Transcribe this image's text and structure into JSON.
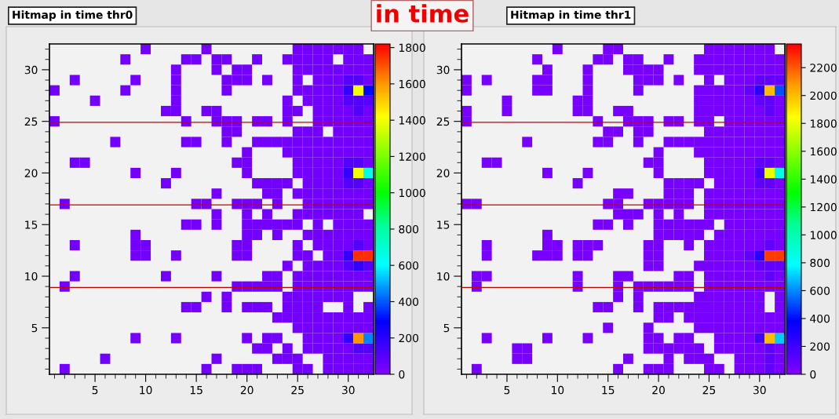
{
  "chart_data": [
    {
      "type": "heatmap",
      "title": "Hitmap in time thr0",
      "annotations": [
        "in time"
      ],
      "x": [
        1,
        2,
        3,
        4,
        5,
        6,
        7,
        8,
        9,
        10,
        11,
        12,
        13,
        14,
        15,
        16,
        17,
        18,
        19,
        20,
        21,
        22,
        23,
        24,
        25,
        26,
        27,
        28,
        29,
        30,
        31,
        32
      ],
      "y": [
        32,
        31,
        30,
        29,
        28,
        27,
        26,
        25,
        24,
        23,
        22,
        21,
        20,
        19,
        18,
        17,
        16,
        15,
        14,
        13,
        12,
        11,
        10,
        9,
        8,
        7,
        6,
        5,
        4,
        3,
        2,
        1
      ],
      "xlim": [
        0.5,
        32.5
      ],
      "xticks": [
        5,
        10,
        15,
        20,
        25,
        30
      ],
      "ylim": [
        0.5,
        32.5
      ],
      "yticks": [
        5,
        10,
        15,
        20,
        25,
        30
      ],
      "clim": [
        0,
        1820
      ],
      "cticks": [
        0,
        200,
        400,
        600,
        800,
        1000,
        1200,
        1400,
        1600,
        1800
      ],
      "ref_lines": [
        {
          "axis": "y",
          "value": 24.9,
          "color": "#c00000"
        },
        {
          "axis": "y",
          "value": 16.9,
          "color": "#c00000"
        },
        {
          "axis": "y",
          "value": 8.9,
          "color": "#c00000"
        }
      ],
      "cells": [
        [
          null,
          null,
          null,
          null,
          null,
          null,
          null,
          null,
          null,
          30,
          null,
          null,
          null,
          null,
          null,
          30,
          null,
          null,
          null,
          null,
          null,
          null,
          null,
          null,
          30,
          30,
          30,
          30,
          30,
          30,
          30,
          null
        ],
        [
          null,
          null,
          null,
          null,
          null,
          null,
          null,
          30,
          null,
          null,
          null,
          null,
          null,
          30,
          30,
          null,
          30,
          30,
          null,
          null,
          30,
          null,
          null,
          30,
          30,
          30,
          30,
          30,
          null,
          30,
          30,
          30
        ],
        [
          null,
          null,
          null,
          null,
          null,
          null,
          null,
          null,
          null,
          null,
          null,
          null,
          30,
          null,
          null,
          null,
          30,
          null,
          30,
          30,
          null,
          null,
          null,
          null,
          30,
          30,
          30,
          30,
          30,
          30,
          30,
          30
        ],
        [
          null,
          null,
          30,
          null,
          null,
          null,
          null,
          null,
          30,
          null,
          null,
          null,
          30,
          null,
          null,
          null,
          null,
          30,
          30,
          30,
          null,
          30,
          null,
          null,
          30,
          null,
          30,
          30,
          30,
          100,
          100,
          30
        ],
        [
          30,
          null,
          null,
          null,
          null,
          null,
          null,
          30,
          null,
          null,
          null,
          null,
          30,
          null,
          null,
          null,
          null,
          30,
          null,
          null,
          null,
          null,
          null,
          null,
          30,
          30,
          30,
          30,
          30,
          180,
          1400,
          300
        ],
        [
          null,
          null,
          null,
          null,
          30,
          null,
          null,
          null,
          null,
          null,
          null,
          null,
          30,
          null,
          null,
          null,
          null,
          null,
          null,
          null,
          null,
          null,
          null,
          30,
          null,
          30,
          30,
          30,
          30,
          100,
          100,
          100
        ],
        [
          null,
          null,
          null,
          null,
          null,
          null,
          null,
          null,
          null,
          null,
          null,
          30,
          30,
          null,
          null,
          30,
          30,
          null,
          null,
          null,
          null,
          null,
          null,
          30,
          30,
          null,
          30,
          30,
          30,
          30,
          100,
          30
        ],
        [
          30,
          null,
          null,
          null,
          null,
          null,
          null,
          null,
          null,
          null,
          null,
          null,
          null,
          30,
          null,
          null,
          30,
          30,
          30,
          null,
          30,
          30,
          null,
          30,
          null,
          null,
          30,
          30,
          30,
          30,
          30,
          30
        ],
        [
          null,
          null,
          null,
          null,
          null,
          null,
          null,
          null,
          null,
          null,
          null,
          null,
          null,
          null,
          null,
          null,
          null,
          30,
          30,
          null,
          null,
          null,
          null,
          null,
          30,
          30,
          30,
          null,
          30,
          30,
          30,
          30
        ],
        [
          null,
          null,
          null,
          null,
          null,
          null,
          30,
          null,
          null,
          null,
          null,
          null,
          null,
          30,
          30,
          null,
          null,
          30,
          null,
          null,
          30,
          30,
          30,
          30,
          30,
          30,
          30,
          30,
          30,
          30,
          30,
          30
        ],
        [
          null,
          null,
          null,
          null,
          null,
          null,
          null,
          null,
          null,
          null,
          null,
          null,
          null,
          null,
          null,
          null,
          null,
          null,
          null,
          30,
          null,
          null,
          null,
          30,
          30,
          30,
          30,
          30,
          30,
          30,
          30,
          30
        ],
        [
          null,
          null,
          30,
          30,
          null,
          null,
          null,
          null,
          null,
          null,
          null,
          null,
          null,
          null,
          null,
          null,
          null,
          null,
          30,
          30,
          null,
          null,
          null,
          null,
          30,
          30,
          30,
          30,
          30,
          100,
          100,
          30
        ],
        [
          null,
          null,
          null,
          null,
          null,
          null,
          null,
          null,
          30,
          null,
          null,
          null,
          30,
          null,
          null,
          null,
          null,
          null,
          null,
          30,
          null,
          null,
          null,
          null,
          30,
          30,
          30,
          30,
          30,
          180,
          1400,
          650
        ],
        [
          null,
          null,
          null,
          null,
          null,
          null,
          null,
          null,
          null,
          null,
          null,
          30,
          null,
          null,
          null,
          null,
          null,
          null,
          null,
          null,
          30,
          30,
          30,
          30,
          null,
          30,
          30,
          30,
          30,
          100,
          100,
          30
        ],
        [
          null,
          null,
          null,
          null,
          null,
          null,
          null,
          null,
          null,
          null,
          null,
          null,
          null,
          null,
          null,
          null,
          30,
          null,
          null,
          null,
          null,
          30,
          30,
          null,
          30,
          30,
          30,
          30,
          30,
          30,
          30,
          30
        ],
        [
          null,
          30,
          null,
          null,
          null,
          null,
          null,
          null,
          null,
          null,
          null,
          null,
          null,
          null,
          30,
          30,
          null,
          null,
          30,
          30,
          30,
          null,
          30,
          null,
          null,
          30,
          30,
          30,
          30,
          30,
          30,
          30
        ],
        [
          null,
          null,
          null,
          null,
          null,
          null,
          null,
          null,
          null,
          null,
          null,
          null,
          null,
          null,
          null,
          null,
          30,
          null,
          null,
          30,
          null,
          30,
          null,
          null,
          30,
          30,
          30,
          30,
          30,
          30,
          30,
          null
        ],
        [
          null,
          null,
          null,
          null,
          null,
          null,
          null,
          null,
          null,
          null,
          null,
          null,
          null,
          30,
          30,
          null,
          30,
          null,
          null,
          30,
          30,
          30,
          30,
          30,
          30,
          null,
          30,
          null,
          30,
          30,
          30,
          30
        ],
        [
          null,
          null,
          null,
          null,
          null,
          null,
          null,
          null,
          30,
          null,
          null,
          null,
          null,
          null,
          null,
          null,
          null,
          null,
          null,
          30,
          30,
          null,
          30,
          null,
          null,
          30,
          30,
          30,
          30,
          30,
          30,
          30
        ],
        [
          null,
          null,
          30,
          null,
          null,
          null,
          null,
          null,
          30,
          30,
          null,
          null,
          null,
          null,
          null,
          null,
          null,
          null,
          30,
          30,
          null,
          null,
          null,
          null,
          30,
          null,
          30,
          30,
          30,
          30,
          100,
          30
        ],
        [
          null,
          null,
          null,
          null,
          null,
          null,
          null,
          null,
          30,
          30,
          null,
          null,
          30,
          null,
          null,
          null,
          null,
          null,
          30,
          30,
          null,
          null,
          null,
          null,
          30,
          30,
          null,
          30,
          30,
          180,
          1750,
          1750
        ],
        [
          null,
          null,
          null,
          null,
          null,
          null,
          null,
          null,
          null,
          null,
          null,
          null,
          null,
          null,
          null,
          null,
          null,
          null,
          null,
          null,
          null,
          null,
          null,
          30,
          null,
          30,
          30,
          30,
          30,
          100,
          180,
          100
        ],
        [
          null,
          null,
          30,
          null,
          null,
          null,
          null,
          null,
          null,
          null,
          null,
          30,
          null,
          null,
          null,
          null,
          30,
          null,
          null,
          null,
          null,
          30,
          30,
          null,
          30,
          30,
          30,
          30,
          30,
          30,
          30,
          30
        ],
        [
          null,
          30,
          null,
          null,
          null,
          null,
          null,
          null,
          null,
          null,
          null,
          null,
          null,
          null,
          null,
          null,
          null,
          null,
          30,
          30,
          30,
          30,
          30,
          null,
          30,
          30,
          30,
          30,
          30,
          30,
          30,
          30
        ],
        [
          null,
          null,
          null,
          null,
          null,
          null,
          null,
          null,
          null,
          null,
          null,
          null,
          null,
          null,
          null,
          30,
          null,
          30,
          null,
          null,
          null,
          null,
          null,
          30,
          30,
          30,
          30,
          30,
          30,
          30,
          null,
          null
        ],
        [
          null,
          null,
          null,
          null,
          null,
          null,
          null,
          null,
          null,
          null,
          null,
          null,
          null,
          30,
          30,
          null,
          null,
          30,
          null,
          30,
          30,
          30,
          null,
          30,
          30,
          30,
          30,
          null,
          null,
          30,
          null,
          30
        ],
        [
          null,
          null,
          null,
          null,
          null,
          null,
          null,
          null,
          null,
          null,
          null,
          null,
          null,
          null,
          null,
          null,
          null,
          null,
          null,
          null,
          null,
          null,
          30,
          30,
          30,
          30,
          30,
          30,
          30,
          30,
          30,
          30
        ],
        [
          null,
          null,
          null,
          null,
          null,
          null,
          null,
          null,
          null,
          null,
          null,
          null,
          null,
          null,
          null,
          null,
          null,
          null,
          null,
          null,
          null,
          null,
          null,
          null,
          30,
          30,
          30,
          30,
          30,
          30,
          30,
          30
        ],
        [
          null,
          null,
          null,
          null,
          null,
          null,
          null,
          null,
          30,
          null,
          null,
          null,
          30,
          null,
          null,
          null,
          null,
          null,
          null,
          30,
          null,
          30,
          30,
          null,
          null,
          30,
          30,
          30,
          30,
          180,
          1600,
          450
        ],
        [
          null,
          null,
          null,
          null,
          null,
          null,
          null,
          null,
          null,
          null,
          null,
          null,
          null,
          null,
          null,
          null,
          null,
          null,
          null,
          null,
          30,
          30,
          null,
          30,
          null,
          30,
          30,
          30,
          30,
          30,
          100,
          100
        ],
        [
          null,
          null,
          null,
          null,
          null,
          30,
          null,
          null,
          null,
          null,
          null,
          null,
          null,
          null,
          null,
          null,
          30,
          null,
          null,
          null,
          null,
          null,
          30,
          30,
          30,
          null,
          null,
          30,
          30,
          30,
          30,
          30
        ],
        [
          null,
          30,
          null,
          null,
          null,
          null,
          null,
          null,
          null,
          null,
          null,
          null,
          null,
          null,
          null,
          30,
          null,
          null,
          30,
          30,
          30,
          null,
          null,
          null,
          30,
          30,
          null,
          30,
          30,
          30,
          30,
          30
        ]
      ]
    },
    {
      "type": "heatmap",
      "title": "Hitmap in time thr1",
      "x": [
        1,
        2,
        3,
        4,
        5,
        6,
        7,
        8,
        9,
        10,
        11,
        12,
        13,
        14,
        15,
        16,
        17,
        18,
        19,
        20,
        21,
        22,
        23,
        24,
        25,
        26,
        27,
        28,
        29,
        30,
        31,
        32
      ],
      "y": [
        32,
        31,
        30,
        29,
        28,
        27,
        26,
        25,
        24,
        23,
        22,
        21,
        20,
        19,
        18,
        17,
        16,
        15,
        14,
        13,
        12,
        11,
        10,
        9,
        8,
        7,
        6,
        5,
        4,
        3,
        2,
        1
      ],
      "xlim": [
        0.5,
        32.5
      ],
      "xticks": [
        5,
        10,
        15,
        20,
        25,
        30
      ],
      "ylim": [
        0.5,
        32.5
      ],
      "yticks": [
        5,
        10,
        15,
        20,
        25,
        30
      ],
      "clim": [
        0,
        2370
      ],
      "cticks": [
        0,
        200,
        400,
        600,
        800,
        1000,
        1200,
        1400,
        1600,
        1800,
        2000,
        2200
      ],
      "ref_lines": [
        {
          "axis": "y",
          "value": 24.9,
          "color": "#c00000"
        },
        {
          "axis": "y",
          "value": 16.9,
          "color": "#c00000"
        },
        {
          "axis": "y",
          "value": 8.9,
          "color": "#c00000"
        }
      ],
      "cells": [
        [
          null,
          null,
          null,
          null,
          null,
          null,
          null,
          null,
          null,
          30,
          null,
          null,
          null,
          null,
          30,
          30,
          null,
          null,
          null,
          null,
          null,
          null,
          null,
          null,
          30,
          30,
          30,
          30,
          30,
          30,
          30,
          null
        ],
        [
          null,
          null,
          null,
          null,
          null,
          null,
          null,
          30,
          null,
          null,
          null,
          null,
          null,
          30,
          30,
          null,
          30,
          30,
          null,
          null,
          30,
          null,
          null,
          30,
          30,
          30,
          30,
          30,
          30,
          30,
          30,
          30
        ],
        [
          null,
          null,
          null,
          null,
          null,
          null,
          null,
          null,
          30,
          null,
          null,
          null,
          30,
          null,
          null,
          null,
          30,
          30,
          30,
          30,
          null,
          null,
          null,
          30,
          30,
          30,
          30,
          30,
          30,
          30,
          30,
          30
        ],
        [
          30,
          null,
          30,
          null,
          null,
          null,
          null,
          30,
          30,
          null,
          null,
          null,
          30,
          null,
          null,
          null,
          null,
          30,
          30,
          30,
          null,
          30,
          null,
          null,
          30,
          null,
          30,
          30,
          30,
          100,
          100,
          100
        ],
        [
          30,
          null,
          null,
          null,
          null,
          null,
          null,
          30,
          30,
          null,
          null,
          null,
          30,
          null,
          null,
          null,
          null,
          30,
          null,
          null,
          null,
          null,
          null,
          30,
          30,
          30,
          30,
          30,
          100,
          250,
          2000,
          500
        ],
        [
          null,
          null,
          null,
          null,
          30,
          null,
          null,
          null,
          null,
          null,
          null,
          30,
          30,
          null,
          null,
          null,
          null,
          null,
          null,
          null,
          null,
          null,
          null,
          30,
          30,
          30,
          30,
          30,
          30,
          100,
          100,
          30
        ],
        [
          30,
          null,
          null,
          null,
          30,
          null,
          null,
          null,
          null,
          null,
          null,
          30,
          30,
          null,
          null,
          30,
          30,
          null,
          null,
          null,
          null,
          null,
          null,
          30,
          30,
          30,
          30,
          30,
          30,
          30,
          100,
          30
        ],
        [
          30,
          null,
          null,
          null,
          null,
          null,
          null,
          null,
          null,
          null,
          null,
          null,
          null,
          30,
          null,
          null,
          30,
          30,
          30,
          null,
          30,
          30,
          null,
          30,
          30,
          null,
          30,
          30,
          30,
          30,
          30,
          30
        ],
        [
          null,
          null,
          null,
          null,
          null,
          null,
          null,
          null,
          null,
          null,
          null,
          null,
          null,
          null,
          30,
          30,
          null,
          30,
          30,
          null,
          null,
          null,
          null,
          null,
          30,
          30,
          30,
          30,
          30,
          30,
          30,
          30
        ],
        [
          null,
          null,
          null,
          null,
          null,
          null,
          30,
          null,
          null,
          null,
          null,
          null,
          null,
          30,
          30,
          null,
          null,
          30,
          null,
          null,
          30,
          30,
          30,
          30,
          30,
          30,
          30,
          30,
          30,
          30,
          30,
          30
        ],
        [
          null,
          null,
          null,
          null,
          null,
          null,
          null,
          null,
          null,
          null,
          null,
          null,
          null,
          null,
          null,
          null,
          null,
          null,
          null,
          30,
          null,
          null,
          null,
          30,
          30,
          30,
          30,
          30,
          30,
          30,
          30,
          30
        ],
        [
          null,
          null,
          30,
          30,
          null,
          null,
          null,
          null,
          null,
          null,
          null,
          null,
          null,
          null,
          null,
          null,
          null,
          null,
          30,
          30,
          null,
          null,
          null,
          null,
          30,
          30,
          30,
          30,
          30,
          100,
          100,
          30
        ],
        [
          null,
          null,
          null,
          null,
          null,
          null,
          null,
          null,
          30,
          null,
          null,
          null,
          30,
          null,
          null,
          null,
          null,
          null,
          null,
          30,
          null,
          null,
          null,
          null,
          30,
          30,
          30,
          30,
          30,
          180,
          1800,
          850
        ],
        [
          null,
          null,
          null,
          null,
          null,
          null,
          null,
          null,
          null,
          null,
          null,
          30,
          null,
          null,
          null,
          null,
          null,
          null,
          null,
          null,
          30,
          30,
          30,
          30,
          null,
          30,
          30,
          30,
          30,
          100,
          100,
          30
        ],
        [
          null,
          null,
          null,
          null,
          null,
          null,
          null,
          null,
          null,
          null,
          null,
          null,
          null,
          null,
          null,
          30,
          30,
          null,
          null,
          null,
          30,
          30,
          30,
          null,
          30,
          30,
          30,
          30,
          30,
          30,
          30,
          30
        ],
        [
          30,
          30,
          null,
          null,
          null,
          null,
          null,
          null,
          null,
          null,
          null,
          null,
          null,
          null,
          30,
          30,
          null,
          null,
          30,
          30,
          30,
          30,
          30,
          null,
          30,
          30,
          30,
          30,
          30,
          30,
          30,
          30
        ],
        [
          null,
          null,
          null,
          null,
          null,
          null,
          null,
          null,
          null,
          null,
          null,
          null,
          null,
          null,
          null,
          30,
          30,
          30,
          null,
          30,
          null,
          30,
          null,
          null,
          30,
          30,
          30,
          30,
          30,
          30,
          30,
          30
        ],
        [
          null,
          null,
          null,
          null,
          null,
          null,
          null,
          null,
          null,
          null,
          null,
          null,
          null,
          30,
          30,
          null,
          30,
          null,
          null,
          30,
          30,
          30,
          30,
          30,
          30,
          null,
          30,
          30,
          30,
          30,
          30,
          30
        ],
        [
          null,
          null,
          null,
          null,
          null,
          null,
          null,
          null,
          30,
          null,
          null,
          null,
          null,
          null,
          null,
          null,
          null,
          null,
          null,
          30,
          30,
          30,
          30,
          30,
          null,
          30,
          30,
          30,
          30,
          30,
          30,
          30
        ],
        [
          null,
          null,
          30,
          null,
          null,
          null,
          null,
          null,
          30,
          30,
          null,
          30,
          30,
          30,
          null,
          null,
          null,
          null,
          30,
          30,
          null,
          null,
          30,
          null,
          30,
          30,
          30,
          30,
          30,
          30,
          100,
          30
        ],
        [
          null,
          null,
          30,
          null,
          null,
          null,
          null,
          30,
          30,
          30,
          null,
          30,
          30,
          null,
          null,
          null,
          null,
          null,
          30,
          30,
          null,
          null,
          null,
          null,
          30,
          30,
          30,
          30,
          100,
          250,
          2250,
          2250
        ],
        [
          null,
          null,
          null,
          null,
          null,
          null,
          null,
          null,
          null,
          null,
          null,
          null,
          null,
          null,
          null,
          null,
          null,
          null,
          30,
          30,
          null,
          null,
          null,
          30,
          30,
          30,
          30,
          30,
          30,
          100,
          100,
          100
        ],
        [
          null,
          30,
          30,
          null,
          null,
          null,
          null,
          null,
          null,
          null,
          null,
          30,
          null,
          null,
          null,
          30,
          30,
          null,
          null,
          null,
          null,
          30,
          30,
          null,
          30,
          30,
          30,
          30,
          30,
          30,
          100,
          30
        ],
        [
          null,
          30,
          null,
          null,
          null,
          null,
          null,
          null,
          null,
          null,
          null,
          30,
          null,
          null,
          null,
          30,
          null,
          30,
          30,
          30,
          30,
          30,
          30,
          null,
          30,
          30,
          30,
          30,
          30,
          30,
          30,
          30
        ],
        [
          null,
          null,
          null,
          null,
          null,
          null,
          null,
          null,
          null,
          null,
          null,
          null,
          null,
          null,
          null,
          30,
          null,
          30,
          null,
          null,
          null,
          null,
          null,
          30,
          30,
          30,
          30,
          30,
          30,
          30,
          null,
          30
        ],
        [
          null,
          null,
          null,
          null,
          null,
          null,
          null,
          null,
          null,
          null,
          null,
          null,
          null,
          30,
          30,
          null,
          null,
          30,
          null,
          30,
          30,
          30,
          30,
          30,
          30,
          30,
          30,
          30,
          30,
          30,
          null,
          30
        ],
        [
          null,
          null,
          null,
          null,
          null,
          null,
          null,
          null,
          null,
          null,
          null,
          null,
          null,
          null,
          null,
          null,
          null,
          null,
          null,
          30,
          30,
          null,
          30,
          30,
          30,
          30,
          30,
          30,
          30,
          30,
          30,
          30
        ],
        [
          null,
          null,
          null,
          null,
          null,
          null,
          null,
          null,
          null,
          null,
          null,
          null,
          null,
          null,
          30,
          null,
          null,
          null,
          30,
          null,
          null,
          null,
          null,
          30,
          30,
          30,
          30,
          30,
          30,
          30,
          30,
          30
        ],
        [
          null,
          null,
          30,
          null,
          null,
          null,
          null,
          null,
          30,
          null,
          null,
          null,
          30,
          null,
          null,
          null,
          null,
          null,
          30,
          30,
          null,
          30,
          30,
          null,
          null,
          30,
          30,
          30,
          30,
          180,
          2000,
          700
        ],
        [
          null,
          null,
          null,
          null,
          null,
          30,
          30,
          null,
          null,
          null,
          null,
          null,
          null,
          null,
          null,
          null,
          null,
          null,
          30,
          30,
          30,
          30,
          30,
          30,
          null,
          30,
          30,
          30,
          30,
          30,
          100,
          30
        ],
        [
          null,
          null,
          null,
          null,
          null,
          30,
          30,
          null,
          null,
          null,
          null,
          null,
          null,
          null,
          null,
          null,
          30,
          null,
          null,
          null,
          30,
          null,
          30,
          30,
          30,
          null,
          null,
          30,
          30,
          30,
          100,
          30
        ],
        [
          null,
          30,
          null,
          null,
          null,
          null,
          null,
          null,
          null,
          null,
          null,
          null,
          null,
          null,
          null,
          30,
          null,
          null,
          30,
          30,
          30,
          null,
          null,
          null,
          30,
          30,
          null,
          30,
          30,
          30,
          100,
          30
        ]
      ]
    }
  ]
}
